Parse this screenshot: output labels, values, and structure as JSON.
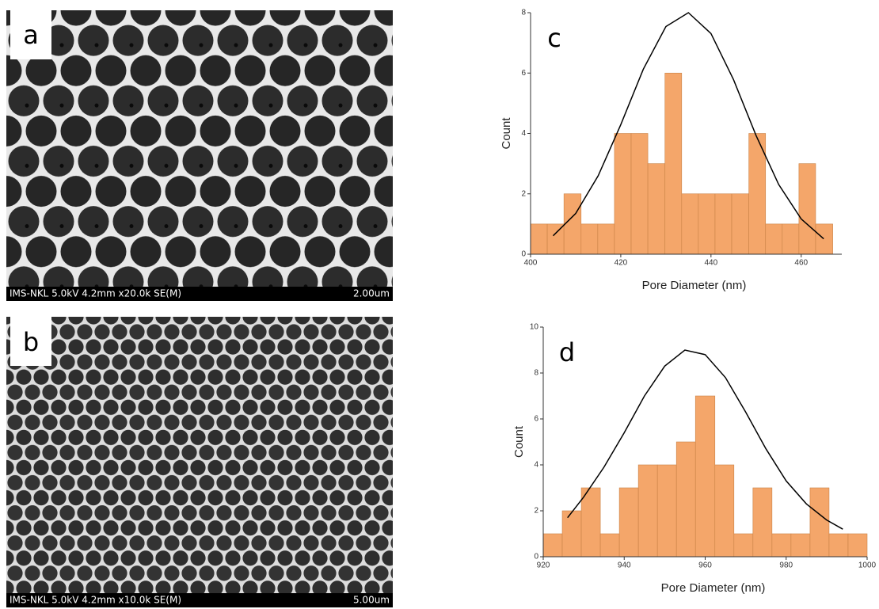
{
  "images": [
    {
      "label": "a",
      "caption": "IMS-NKL 5.0kV 4.2mm x20.0k SE(M)",
      "scale": "2.00um"
    },
    {
      "label": "b",
      "caption": "IMS-NKL 5.0kV 4.2mm x10.0k SE(M)",
      "scale": "5.00um"
    }
  ],
  "chart_data": [
    {
      "type": "histogram",
      "label": "c",
      "xlabel": "Pore Diameter (nm)",
      "ylabel": "Count",
      "bins": [
        400,
        403.7,
        407.4,
        411.2,
        414.9,
        418.6,
        422.3,
        426.0,
        429.8,
        433.5,
        437.2,
        440.9,
        444.6,
        448.4,
        452.1,
        455.8,
        459.5,
        463.2,
        467.0
      ],
      "values": [
        1,
        1,
        2,
        1,
        1,
        4,
        4,
        3,
        6,
        2,
        2,
        2,
        2,
        4,
        1,
        1,
        3,
        1
      ],
      "color": "#f4a66a",
      "edge_color": "#c98246",
      "fit": {
        "color": "#000000",
        "x": [
          405,
          410,
          415,
          420,
          425,
          430,
          435,
          440,
          445,
          450,
          455,
          460,
          465
        ],
        "values": [
          0.61,
          1.35,
          2.6,
          4.29,
          6.13,
          7.54,
          8.0,
          7.31,
          5.78,
          3.93,
          2.31,
          1.17,
          0.51
        ]
      },
      "xlim": [
        400,
        469
      ],
      "ylim": [
        0,
        8
      ],
      "xticks": [
        400,
        420,
        440,
        460
      ],
      "yticks": [
        0,
        2,
        4,
        6,
        8
      ]
    },
    {
      "type": "histogram",
      "label": "d",
      "xlabel": "Pore Diameter (nm)",
      "ylabel": "Count",
      "bins": [
        920,
        924.7,
        929.4,
        934.1,
        938.8,
        943.5,
        948.2,
        952.9,
        957.6,
        962.4,
        967.1,
        971.8,
        976.5,
        981.2,
        985.9,
        990.6,
        995.3,
        1000
      ],
      "values": [
        1,
        2,
        3,
        1,
        3,
        4,
        4,
        5,
        7,
        4,
        1,
        3,
        1,
        1,
        3,
        1,
        1
      ],
      "color": "#f4a66a",
      "edge_color": "#c98246",
      "fit": {
        "color": "#000000",
        "x": [
          926,
          930,
          935,
          940,
          945,
          950,
          955,
          960,
          965,
          970,
          975,
          980,
          985,
          990,
          994
        ],
        "values": [
          1.7,
          2.6,
          3.9,
          5.4,
          7.0,
          8.3,
          9.0,
          8.8,
          7.8,
          6.3,
          4.7,
          3.3,
          2.3,
          1.6,
          1.2
        ]
      },
      "xlim": [
        920,
        1000
      ],
      "ylim": [
        0,
        10
      ],
      "xticks": [
        920,
        940,
        960,
        980,
        1000
      ],
      "yticks": [
        0,
        2,
        4,
        6,
        8,
        10
      ]
    }
  ]
}
